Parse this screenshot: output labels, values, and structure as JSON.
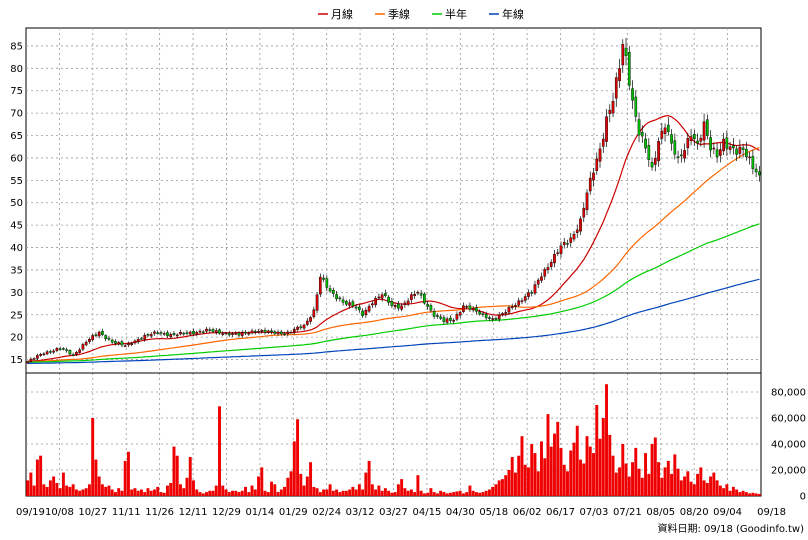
{
  "chart_data": {
    "type": "candlestick",
    "legend": {
      "placement": "top-center",
      "items": [
        {
          "name": "月線",
          "color": "#cc0000"
        },
        {
          "name": "季線",
          "color": "#ff6600"
        },
        {
          "name": "半年",
          "color": "#00cc00"
        },
        {
          "name": "年線",
          "color": "#0044bb"
        }
      ]
    },
    "price_axis": {
      "min": 12,
      "max": 89,
      "ticks": [
        15,
        20,
        25,
        30,
        35,
        40,
        45,
        50,
        55,
        60,
        65,
        70,
        75,
        80,
        85
      ],
      "side": "left"
    },
    "volume_axis": {
      "min": 0,
      "max": 90000,
      "ticks": [
        0,
        20000,
        40000,
        60000,
        80000
      ],
      "tick_labels": [
        "0",
        "20,000",
        "40,000",
        "60,000",
        "80,000"
      ],
      "side": "right"
    },
    "x_labels": [
      "09/19",
      "10/08",
      "10/27",
      "11/11",
      "11/26",
      "12/11",
      "12/29",
      "01/14",
      "01/29",
      "02/24",
      "03/12",
      "03/27",
      "04/15",
      "04/30",
      "05/18",
      "06/02",
      "06/17",
      "07/03",
      "07/21",
      "08/05",
      "08/20",
      "09/04",
      "09/18"
    ],
    "grid": true,
    "up_color": "#dd0000",
    "down_color": "#00bb00",
    "volume_color": "#ee0000",
    "price_anchors": [
      [
        0,
        14.5
      ],
      [
        5,
        16.5
      ],
      [
        10,
        17.5
      ],
      [
        14,
        16
      ],
      [
        18,
        19
      ],
      [
        22,
        21
      ],
      [
        26,
        19
      ],
      [
        30,
        18
      ],
      [
        35,
        20
      ],
      [
        40,
        21
      ],
      [
        45,
        20.5
      ],
      [
        50,
        21
      ],
      [
        55,
        21.5
      ],
      [
        60,
        21
      ],
      [
        65,
        20.5
      ],
      [
        70,
        21.5
      ],
      [
        75,
        21
      ],
      [
        80,
        21
      ],
      [
        85,
        22.5
      ],
      [
        88,
        26
      ],
      [
        90,
        33.5
      ],
      [
        93,
        30
      ],
      [
        97,
        28
      ],
      [
        100,
        27
      ],
      [
        103,
        25
      ],
      [
        106,
        28
      ],
      [
        109,
        29.5
      ],
      [
        112,
        27
      ],
      [
        115,
        27
      ],
      [
        118,
        29
      ],
      [
        120,
        30
      ],
      [
        122,
        28
      ],
      [
        125,
        25
      ],
      [
        128,
        23.5
      ],
      [
        131,
        24
      ],
      [
        134,
        27
      ],
      [
        137,
        26
      ],
      [
        140,
        25
      ],
      [
        143,
        24
      ],
      [
        146,
        25
      ],
      [
        149,
        27
      ],
      [
        152,
        28.5
      ],
      [
        155,
        30
      ],
      [
        158,
        34
      ],
      [
        161,
        37
      ],
      [
        164,
        40
      ],
      [
        167,
        42
      ],
      [
        170,
        46
      ],
      [
        172,
        52
      ],
      [
        174,
        57
      ],
      [
        176,
        62
      ],
      [
        178,
        69
      ],
      [
        180,
        73
      ],
      [
        182,
        80
      ],
      [
        183,
        85
      ],
      [
        184,
        82
      ],
      [
        186,
        73
      ],
      [
        188,
        66
      ],
      [
        190,
        62
      ],
      [
        192,
        57
      ],
      [
        194,
        64
      ],
      [
        196,
        68
      ],
      [
        198,
        63
      ],
      [
        200,
        59
      ],
      [
        202,
        62
      ],
      [
        204,
        66
      ],
      [
        206,
        63
      ],
      [
        208,
        67
      ],
      [
        210,
        62
      ],
      [
        212,
        61
      ],
      [
        214,
        64
      ],
      [
        216,
        62
      ],
      [
        218,
        61
      ],
      [
        220,
        62
      ],
      [
        222,
        60
      ],
      [
        224,
        57
      ],
      [
        226,
        54
      ],
      [
        228,
        52
      ],
      [
        229,
        52
      ],
      [
        230,
        53
      ]
    ],
    "volume_bars": [
      12000,
      18000,
      8000,
      28000,
      31000,
      9000,
      7000,
      12000,
      15000,
      10000,
      6000,
      18000,
      8000,
      7000,
      9000,
      5000,
      4000,
      5000,
      6000,
      9000,
      60000,
      28000,
      15000,
      9000,
      7000,
      8000,
      5000,
      3000,
      6000,
      4000,
      27000,
      34000,
      5000,
      6000,
      4000,
      5000,
      3000,
      6000,
      4000,
      5000,
      7000,
      3000,
      2500,
      8000,
      10000,
      38000,
      31000,
      9000,
      6000,
      14000,
      30000,
      12000,
      5000,
      3000,
      2000,
      3000,
      4000,
      4000,
      8000,
      69000,
      8000,
      5000,
      3000,
      4000,
      4000,
      3000,
      4000,
      7000,
      3000,
      8000,
      5000,
      15000,
      22000,
      4000,
      3000,
      11000,
      9000,
      3000,
      5000,
      7000,
      14000,
      19000,
      42000,
      59000,
      17000,
      8000,
      15000,
      26000,
      7000,
      6000,
      3000,
      5000,
      5000,
      9000,
      4000,
      5000,
      3000,
      4000,
      4000,
      5000,
      7000,
      5000,
      9000,
      5000,
      18000,
      27000,
      9000,
      5000,
      8000,
      4000,
      6000,
      4000,
      2500,
      3000,
      9000,
      13000,
      6000,
      4000,
      5000,
      3000,
      16000,
      4000,
      2000,
      2500,
      6000,
      3000,
      2000,
      4000,
      3000,
      2000,
      2500,
      3000,
      3500,
      4000,
      2000,
      3000,
      8000,
      4000,
      3000,
      2500,
      3000,
      4000,
      5000,
      7000,
      9000,
      12000,
      13000,
      16000,
      20000,
      30000,
      18000,
      31000,
      46000,
      24000,
      22000,
      40000,
      33000,
      19000,
      42000,
      29000,
      63000,
      38000,
      48000,
      57000,
      37000,
      24000,
      19000,
      35000,
      41000,
      54000,
      28000,
      25000,
      46000,
      38000,
      33000,
      70000,
      44000,
      60000,
      86000,
      47000,
      31000,
      18000,
      22000,
      40000,
      25000,
      15000,
      26000,
      37000,
      21000,
      14000,
      33000,
      17000,
      40000,
      45000,
      26000,
      14000,
      22000,
      27000,
      17000,
      32000,
      21000,
      12000,
      15000,
      19000,
      11000,
      9000,
      17000,
      22000,
      12000,
      10000,
      15000,
      18000,
      12000,
      8000,
      6000,
      9000,
      4000,
      7000,
      5000,
      3000,
      4000,
      3000,
      2000,
      2500,
      2000,
      1500
    ]
  },
  "credit": "資料日期: 09/18  (Goodinfo.tw)"
}
